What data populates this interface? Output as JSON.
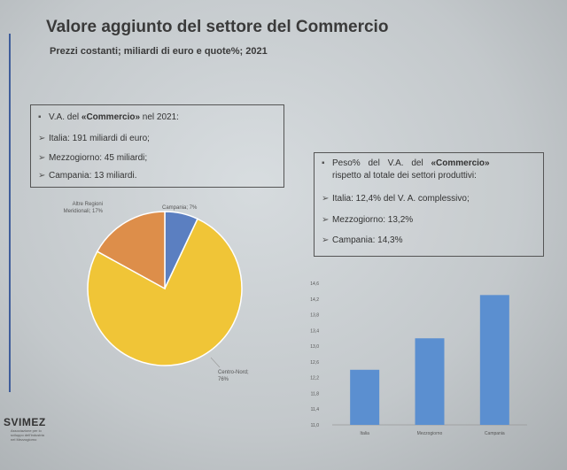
{
  "slide": {
    "title": "Valore aggiunto del settore del Commercio",
    "subtitle": "Prezzi costanti; miliardi di euro e quote%; 2021"
  },
  "box_va": {
    "heading_pre": "V.A. del ",
    "heading_bold": "«Commercio»",
    "heading_post": " nel 2021:",
    "items": [
      "Italia: 191 miliardi di euro;",
      "Mezzogiorno: 45 miliardi;",
      "Campania: 13 miliardi."
    ]
  },
  "box_share": {
    "heading_pre": "Peso% del V.A. del ",
    "heading_bold": "«Commercio»",
    "heading_line2": "rispetto al totale dei settori produttivi:",
    "items": [
      "Italia: 12,4% del V. A. complessivo;",
      "Mezzogiorno: 13,2%",
      "Campania: 14,3%"
    ]
  },
  "bullet_icon": "square-bullet-icon",
  "arrow_icon": "arrow-bullet-icon",
  "chart_data": [
    {
      "type": "pie",
      "categories": [
        "Campania",
        "Centro-Nord",
        "Altre Regioni Meridionali"
      ],
      "values": [
        7,
        76,
        17
      ],
      "label_lines": [
        [
          "Campania; 7%"
        ],
        [
          "Centro-Nord;",
          "76%"
        ],
        [
          "Altre Regioni",
          "Meridionali; 17%"
        ]
      ],
      "colors": [
        "#5b7fc1",
        "#f0c537",
        "#dd8e4a"
      ]
    },
    {
      "type": "bar",
      "categories": [
        "Italia",
        "Mezzogiorno",
        "Campania"
      ],
      "values": [
        12.4,
        13.2,
        14.3
      ],
      "ylim": [
        11.0,
        14.6
      ],
      "yticks": [
        "11,0",
        "11,4",
        "11,8",
        "12,2",
        "12,6",
        "13,0",
        "13,4",
        "13,8",
        "14,2",
        "14,6"
      ],
      "color": "#5b8fd0"
    }
  ],
  "logo": {
    "name": "SVIMEZ",
    "tagline": "Associazione per lo sviluppo dell'industria nel Mezzogiorno"
  }
}
